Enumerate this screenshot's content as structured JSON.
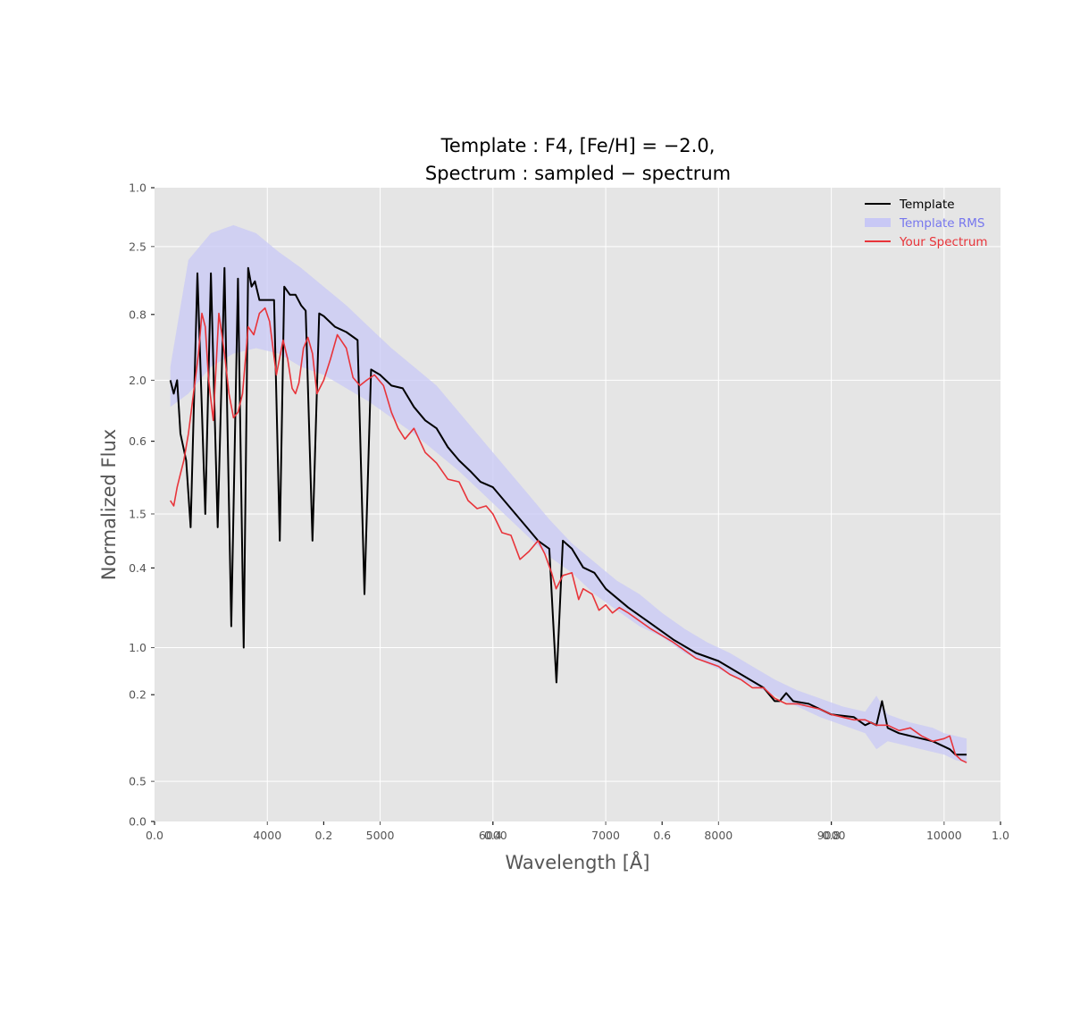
{
  "chart_data": {
    "type": "line",
    "title_line1": "Template :  F4,  [Fe/H] = −2.0,",
    "title_line2": "Spectrum :  sampled − spectrum",
    "xlabel": "Wavelength [Å]",
    "ylabel": "Normalized Flux",
    "xlim": [
      3000,
      10500
    ],
    "ylim": [
      0.35,
      2.72
    ],
    "xticks": [
      4000,
      5000,
      6000,
      7000,
      8000,
      9000,
      10000
    ],
    "xtick_labels": [
      "4000",
      "5000",
      "6000",
      "7000",
      "8000",
      "9000",
      "10000"
    ],
    "yticks": [
      0.5,
      1.0,
      1.5,
      2.0,
      2.5
    ],
    "ytick_labels": [
      "0.5",
      "1.0",
      "1.5",
      "2.0",
      "2.5"
    ],
    "overlay_xticks": [
      0.0,
      0.2,
      0.4,
      0.6,
      0.8,
      1.0
    ],
    "overlay_xtick_labels": [
      "0.0",
      "0.2",
      "0.4",
      "0.6",
      "0.8",
      "1.0"
    ],
    "overlay_yticks": [
      0.0,
      0.2,
      0.4,
      0.6,
      0.8,
      1.0
    ],
    "overlay_ytick_labels": [
      "0.0",
      "0.2",
      "0.4",
      "0.6",
      "0.8",
      "1.0"
    ],
    "grid": true,
    "legend_position": "top-right",
    "legend": [
      {
        "label": "Template",
        "color": "#000000",
        "kind": "line"
      },
      {
        "label": "Template RMS",
        "color": "#7777ee",
        "kind": "patch"
      },
      {
        "label": "Your Spectrum",
        "color": "#e8343a",
        "kind": "line"
      }
    ],
    "colors": {
      "template": "#000000",
      "rms_fill": "#c8c8f5",
      "spectrum": "#e8343a",
      "axes_bg": "#e5e5e5",
      "grid": "#ffffff"
    },
    "series": [
      {
        "name": "Template",
        "x": [
          3140,
          3170,
          3200,
          3230,
          3280,
          3320,
          3380,
          3450,
          3500,
          3560,
          3620,
          3680,
          3740,
          3790,
          3830,
          3860,
          3890,
          3930,
          3970,
          4010,
          4060,
          4110,
          4150,
          4200,
          4250,
          4300,
          4340,
          4400,
          4460,
          4500,
          4600,
          4700,
          4800,
          4861,
          4920,
          5000,
          5100,
          5200,
          5300,
          5400,
          5500,
          5600,
          5700,
          5800,
          5890,
          6000,
          6100,
          6200,
          6300,
          6400,
          6500,
          6563,
          6620,
          6700,
          6800,
          6900,
          7000,
          7200,
          7400,
          7600,
          7800,
          8000,
          8200,
          8400,
          8498,
          8542,
          8600,
          8662,
          8800,
          9000,
          9200,
          9300,
          9350,
          9400,
          9450,
          9500,
          9550,
          9600,
          9700,
          9800,
          9900,
          10000,
          10050,
          10100,
          10200,
          10200
        ],
        "y": [
          2.0,
          1.95,
          2.0,
          1.8,
          1.7,
          1.45,
          2.4,
          1.5,
          2.4,
          1.45,
          2.42,
          1.08,
          2.38,
          1.0,
          2.42,
          2.35,
          2.37,
          2.3,
          2.3,
          2.3,
          2.3,
          1.4,
          2.35,
          2.32,
          2.32,
          2.28,
          2.26,
          1.4,
          2.25,
          2.24,
          2.2,
          2.18,
          2.15,
          1.2,
          2.04,
          2.02,
          1.98,
          1.97,
          1.9,
          1.85,
          1.82,
          1.75,
          1.7,
          1.66,
          1.62,
          1.6,
          1.55,
          1.5,
          1.45,
          1.4,
          1.37,
          0.87,
          1.4,
          1.37,
          1.3,
          1.28,
          1.22,
          1.15,
          1.09,
          1.03,
          0.98,
          0.95,
          0.9,
          0.85,
          0.8,
          0.8,
          0.83,
          0.8,
          0.79,
          0.75,
          0.74,
          0.71,
          0.72,
          0.71,
          0.8,
          0.7,
          0.69,
          0.68,
          0.67,
          0.66,
          0.65,
          0.63,
          0.62,
          0.6,
          0.6,
          0.6
        ]
      },
      {
        "name": "Your Spectrum",
        "x": [
          3140,
          3170,
          3200,
          3230,
          3260,
          3300,
          3330,
          3360,
          3390,
          3420,
          3450,
          3480,
          3520,
          3570,
          3620,
          3660,
          3700,
          3740,
          3780,
          3830,
          3880,
          3930,
          3980,
          4020,
          4080,
          4140,
          4180,
          4220,
          4250,
          4280,
          4320,
          4360,
          4400,
          4440,
          4500,
          4560,
          4620,
          4700,
          4760,
          4820,
          4880,
          4950,
          5030,
          5100,
          5160,
          5220,
          5300,
          5400,
          5500,
          5600,
          5700,
          5780,
          5860,
          5940,
          6000,
          6080,
          6160,
          6240,
          6320,
          6400,
          6460,
          6520,
          6560,
          6620,
          6700,
          6760,
          6800,
          6880,
          6940,
          7000,
          7060,
          7120,
          7200,
          7400,
          7600,
          7800,
          8000,
          8100,
          8200,
          8300,
          8400,
          8500,
          8600,
          8700,
          8800,
          8900,
          9000,
          9100,
          9200,
          9300,
          9400,
          9500,
          9600,
          9700,
          9800,
          9900,
          10000,
          10050,
          10100,
          10150,
          10200
        ],
        "y": [
          1.55,
          1.53,
          1.6,
          1.65,
          1.7,
          1.8,
          1.9,
          2.0,
          2.1,
          2.25,
          2.2,
          2.0,
          1.85,
          2.25,
          2.1,
          1.95,
          1.86,
          1.88,
          1.95,
          2.2,
          2.17,
          2.25,
          2.27,
          2.22,
          2.02,
          2.15,
          2.08,
          1.97,
          1.95,
          1.99,
          2.12,
          2.16,
          2.1,
          1.95,
          2.0,
          2.08,
          2.17,
          2.12,
          2.01,
          1.98,
          2.0,
          2.02,
          1.98,
          1.88,
          1.82,
          1.78,
          1.82,
          1.73,
          1.69,
          1.63,
          1.62,
          1.55,
          1.52,
          1.53,
          1.5,
          1.43,
          1.42,
          1.33,
          1.36,
          1.4,
          1.35,
          1.28,
          1.22,
          1.27,
          1.28,
          1.18,
          1.22,
          1.2,
          1.14,
          1.16,
          1.13,
          1.15,
          1.13,
          1.07,
          1.02,
          0.96,
          0.93,
          0.9,
          0.88,
          0.85,
          0.85,
          0.81,
          0.79,
          0.79,
          0.78,
          0.77,
          0.75,
          0.74,
          0.73,
          0.73,
          0.71,
          0.71,
          0.69,
          0.7,
          0.67,
          0.65,
          0.66,
          0.67,
          0.6,
          0.58,
          0.57
        ]
      },
      {
        "name": "Template RMS",
        "x": [
          3140,
          3300,
          3500,
          3700,
          3900,
          4100,
          4300,
          4500,
          4700,
          4900,
          5100,
          5300,
          5500,
          5700,
          5900,
          6100,
          6300,
          6500,
          6700,
          6900,
          7100,
          7300,
          7500,
          7700,
          7900,
          8100,
          8300,
          8500,
          8700,
          8900,
          9100,
          9300,
          9400,
          9500,
          9700,
          9900,
          10000,
          10100,
          10200
        ],
        "upper": [
          2.05,
          2.45,
          2.55,
          2.58,
          2.55,
          2.48,
          2.42,
          2.35,
          2.28,
          2.2,
          2.12,
          2.05,
          1.98,
          1.88,
          1.78,
          1.68,
          1.58,
          1.48,
          1.39,
          1.32,
          1.25,
          1.2,
          1.13,
          1.07,
          1.02,
          0.98,
          0.93,
          0.88,
          0.84,
          0.81,
          0.78,
          0.76,
          0.82,
          0.75,
          0.72,
          0.7,
          0.68,
          0.67,
          0.66
        ],
        "lower": [
          1.9,
          1.95,
          2.05,
          2.1,
          2.12,
          2.1,
          2.05,
          2.02,
          1.97,
          1.92,
          1.86,
          1.8,
          1.73,
          1.66,
          1.58,
          1.5,
          1.42,
          1.34,
          1.28,
          1.2,
          1.14,
          1.08,
          1.04,
          0.98,
          0.94,
          0.9,
          0.86,
          0.82,
          0.78,
          0.74,
          0.71,
          0.68,
          0.62,
          0.65,
          0.63,
          0.61,
          0.6,
          0.58,
          0.57
        ]
      }
    ]
  }
}
